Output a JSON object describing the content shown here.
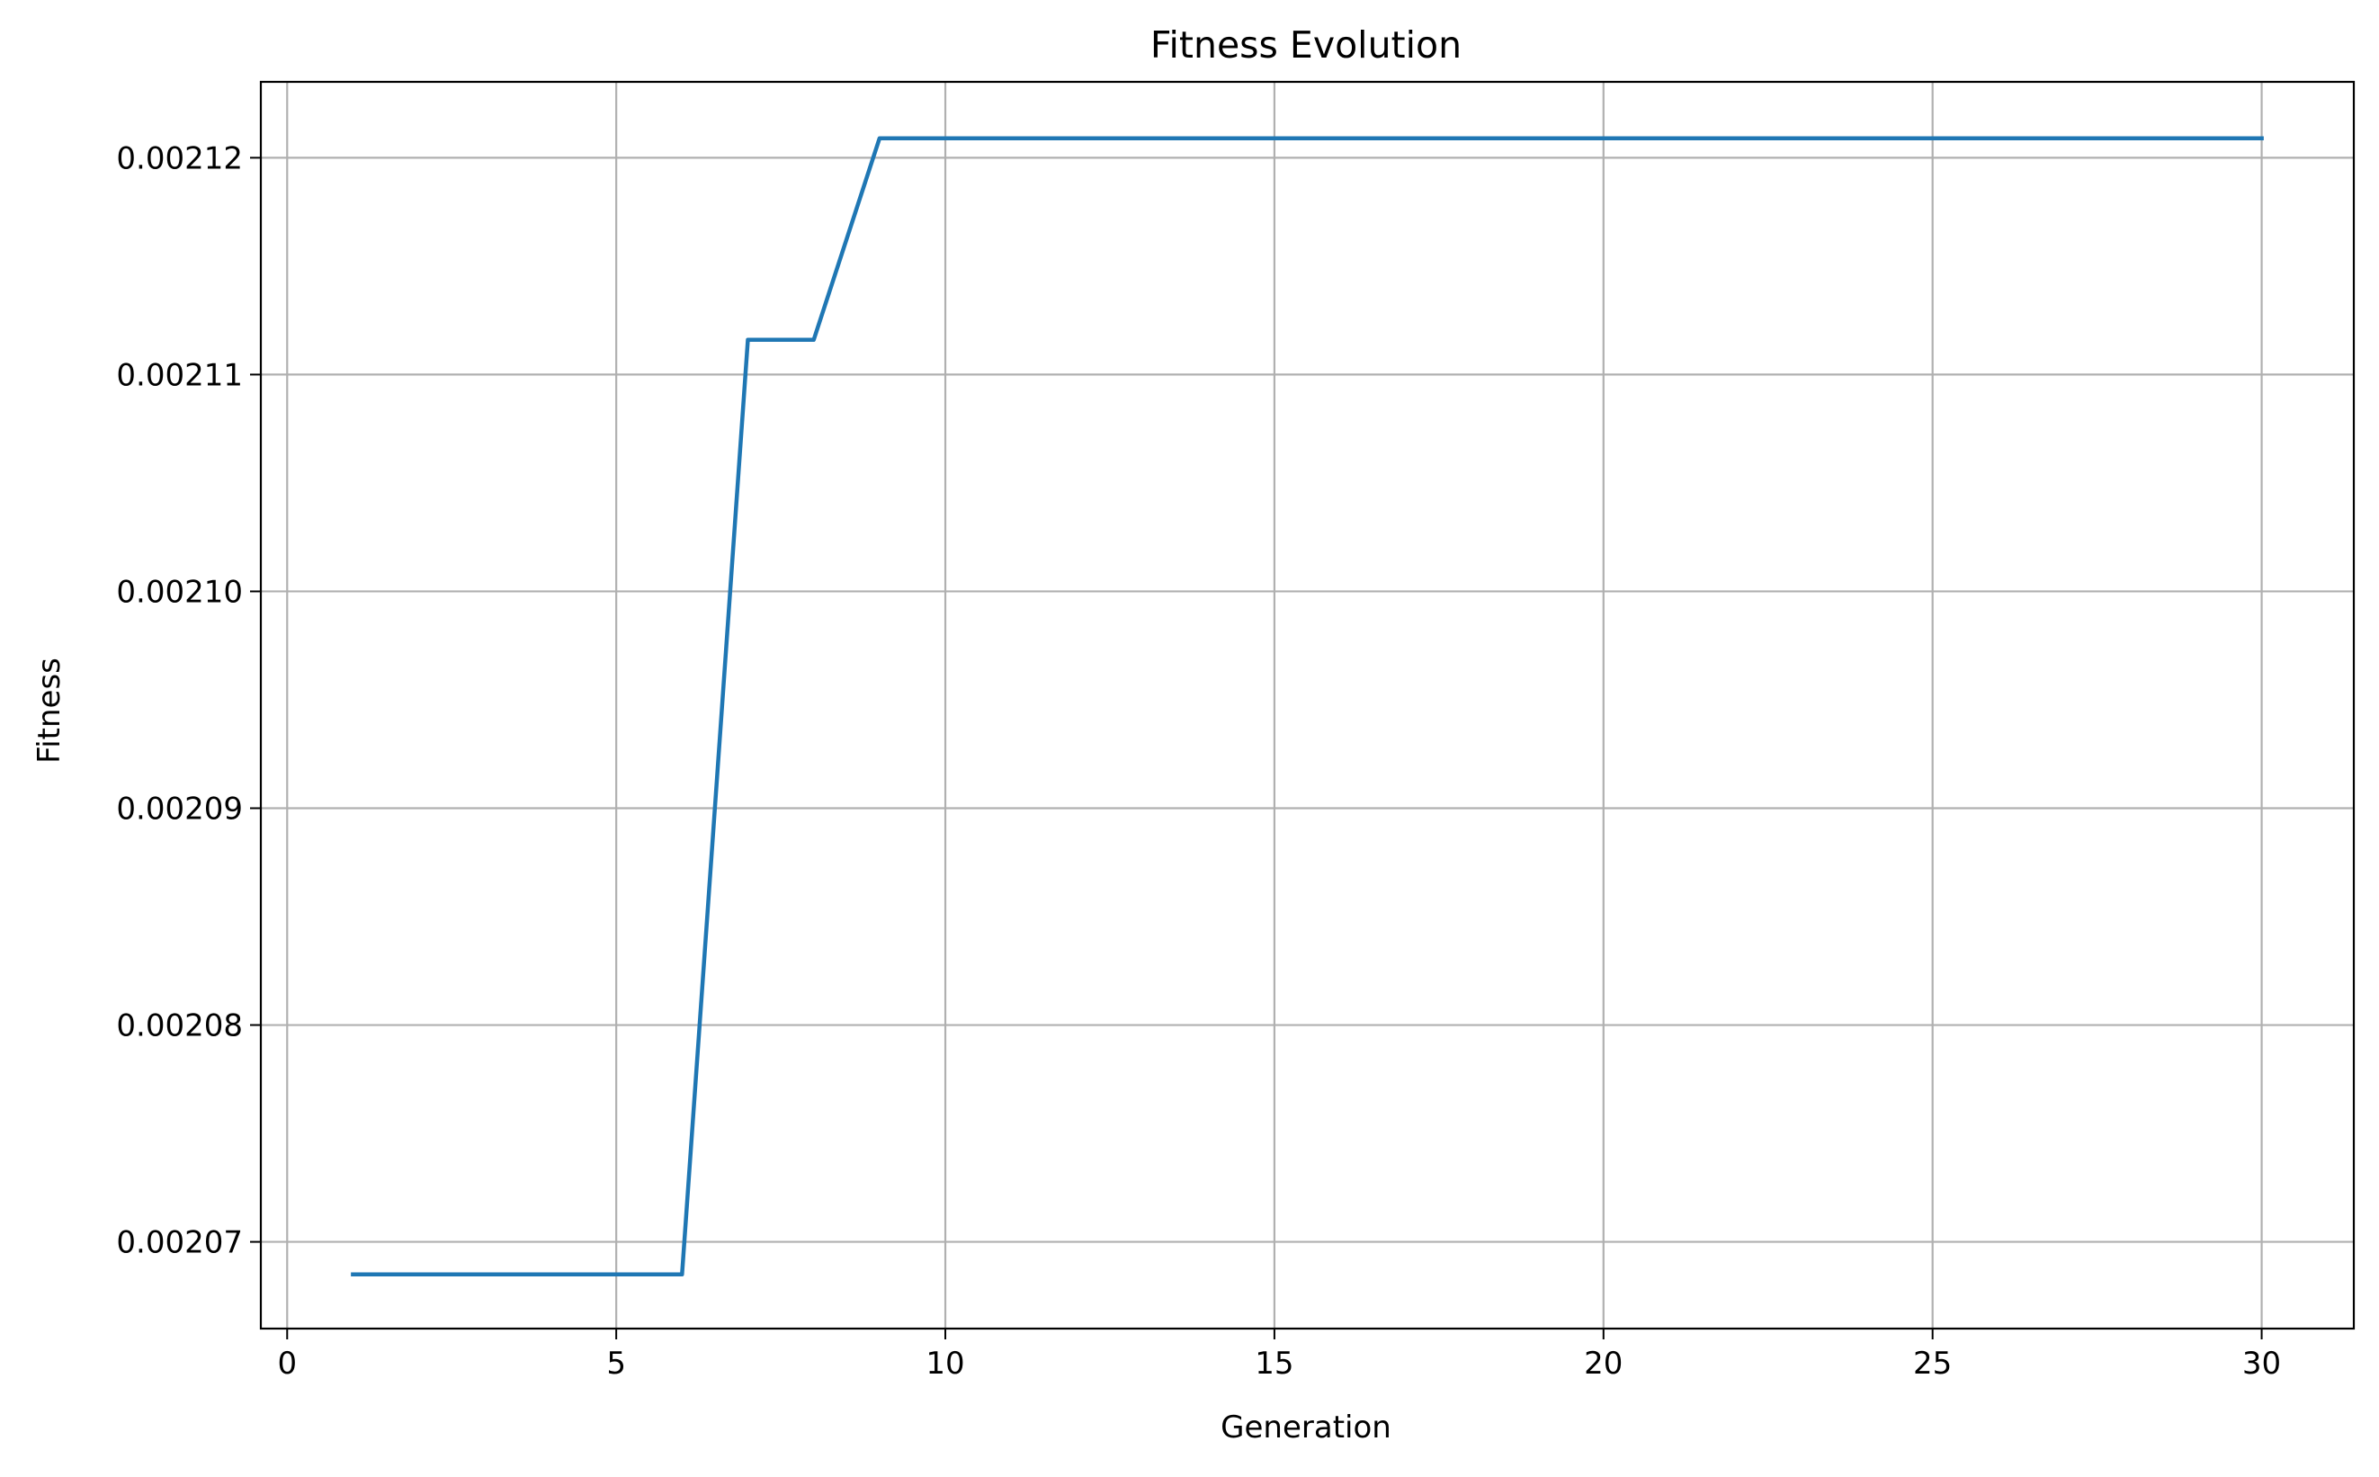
{
  "chart_data": {
    "type": "line",
    "title": "Fitness Evolution",
    "xlabel": "Generation",
    "ylabel": "Fitness",
    "xlim": [
      -0.4,
      31.4
    ],
    "ylim": [
      0.002066,
      0.0021235
    ],
    "xticks": [
      0,
      5,
      10,
      15,
      20,
      25,
      30
    ],
    "xtick_labels": [
      "0",
      "5",
      "10",
      "15",
      "20",
      "25",
      "30"
    ],
    "yticks": [
      0.00207,
      0.00208,
      0.00209,
      0.0021,
      0.00211,
      0.00212
    ],
    "ytick_labels": [
      "0.00207",
      "0.00208",
      "0.00209",
      "0.00210",
      "0.00211",
      "0.00212"
    ],
    "grid": true,
    "series": [
      {
        "color": "#1f77b4",
        "x": [
          1,
          2,
          3,
          4,
          5,
          6,
          7,
          8,
          9,
          10,
          11,
          12,
          13,
          14,
          15,
          16,
          17,
          18,
          19,
          20,
          21,
          22,
          23,
          24,
          25,
          26,
          27,
          28,
          29,
          30
        ],
        "y": [
          0.0020685,
          0.0020685,
          0.0020685,
          0.0020685,
          0.0020685,
          0.0020685,
          0.0021116,
          0.0021116,
          0.0021209,
          0.0021209,
          0.0021209,
          0.0021209,
          0.0021209,
          0.0021209,
          0.0021209,
          0.0021209,
          0.0021209,
          0.0021209,
          0.0021209,
          0.0021209,
          0.0021209,
          0.0021209,
          0.0021209,
          0.0021209,
          0.0021209,
          0.0021209,
          0.0021209,
          0.0021209,
          0.0021209,
          0.0021209
        ]
      }
    ]
  }
}
